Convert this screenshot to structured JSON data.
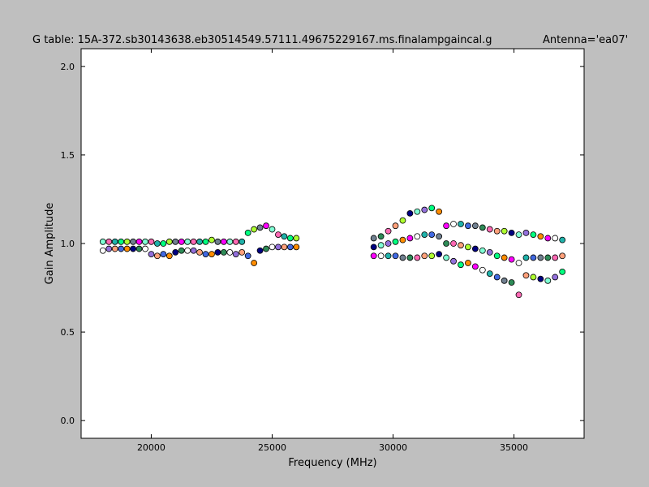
{
  "chart_data": {
    "type": "scatter",
    "title": "G table: 15A-372.sb30143638.eb30514549.57111.49675229167.ms.finalampgaincal.g",
    "annotation": "Antenna='ea07'",
    "x_label": "Frequency (MHz)",
    "y_label": "Gain Amplitude",
    "xlim": [
      17100,
      37900
    ],
    "ylim": [
      -0.1,
      2.1
    ],
    "xticks": [
      20000,
      25000,
      30000,
      35000
    ],
    "yticks": [
      {
        "value": 0,
        "label": "0.0"
      },
      {
        "value": 0.5,
        "label": "0.5"
      },
      {
        "value": 1,
        "label": "1.0"
      },
      {
        "value": 1.5,
        "label": "1.5"
      },
      {
        "value": 2,
        "label": "2.0"
      }
    ],
    "colors": [
      "#7fffd4",
      "#ffffff",
      "#ff69b4",
      "#9370db",
      "#20b2aa",
      "#ffa07a",
      "#00ff7f",
      "#4169e1",
      "#adff2f",
      "#ff8c00",
      "#708090",
      "#000080",
      "#ff00ff",
      "#2e8b57"
    ],
    "x": [
      18000,
      18000,
      18250,
      18250,
      18500,
      18500,
      18750,
      18750,
      19000,
      19000,
      19250,
      19250,
      19500,
      19500,
      19750,
      19750,
      20000,
      20000,
      20250,
      20250,
      20500,
      20500,
      20750,
      20750,
      21000,
      21000,
      21250,
      21250,
      21500,
      21500,
      21750,
      21750,
      22000,
      22000,
      22250,
      22250,
      22500,
      22500,
      22750,
      22750,
      23000,
      23000,
      23250,
      23250,
      23500,
      23500,
      23750,
      23750,
      24000,
      24000,
      24250,
      24250,
      24500,
      24500,
      24750,
      24750,
      25000,
      25000,
      25250,
      25250,
      25500,
      25500,
      25750,
      25750,
      26000,
      26000,
      29200,
      29200,
      29200,
      29500,
      29500,
      29500,
      29800,
      29800,
      29800,
      30100,
      30100,
      30100,
      30400,
      30400,
      30400,
      30700,
      30700,
      30700,
      31000,
      31000,
      31000,
      31300,
      31300,
      31300,
      31600,
      31600,
      31600,
      31900,
      31900,
      31900,
      32200,
      32200,
      32200,
      32500,
      32500,
      32500,
      32800,
      32800,
      32800,
      33100,
      33100,
      33100,
      33400,
      33400,
      33400,
      33700,
      33700,
      33700,
      34000,
      34000,
      34000,
      34300,
      34300,
      34300,
      34600,
      34600,
      34600,
      34900,
      34900,
      34900,
      35200,
      35200,
      35200,
      35500,
      35500,
      35500,
      35800,
      35800,
      35800,
      36100,
      36100,
      36100,
      36400,
      36400,
      36400,
      36700,
      36700,
      36700,
      37000,
      37000,
      37000
    ],
    "y": [
      1.01,
      0.96,
      1.01,
      0.97,
      1.01,
      0.97,
      1.01,
      0.97,
      1.01,
      0.97,
      1.01,
      0.97,
      1.01,
      0.97,
      1.01,
      0.97,
      1.01,
      0.94,
      1.0,
      0.93,
      1.0,
      0.94,
      1.01,
      0.93,
      1.01,
      0.95,
      1.01,
      0.96,
      1.01,
      0.96,
      1.01,
      0.96,
      1.01,
      0.95,
      1.01,
      0.94,
      1.02,
      0.94,
      1.01,
      0.95,
      1.01,
      0.95,
      1.01,
      0.95,
      1.01,
      0.94,
      1.01,
      0.95,
      1.06,
      0.93,
      1.08,
      0.89,
      1.09,
      0.96,
      1.1,
      0.97,
      1.08,
      0.98,
      1.05,
      0.98,
      1.04,
      0.98,
      1.03,
      0.98,
      1.03,
      0.98,
      1.03,
      0.98,
      0.93,
      1.04,
      0.99,
      0.93,
      1.07,
      1.0,
      0.93,
      1.1,
      1.01,
      0.93,
      1.13,
      1.02,
      0.92,
      1.17,
      1.03,
      0.92,
      1.18,
      1.04,
      0.92,
      1.19,
      1.05,
      0.93,
      1.2,
      1.05,
      0.93,
      1.18,
      1.04,
      0.94,
      1.1,
      1.0,
      0.92,
      1.11,
      1.0,
      0.9,
      1.11,
      0.99,
      0.88,
      1.1,
      0.98,
      0.89,
      1.1,
      0.97,
      0.87,
      1.09,
      0.96,
      0.85,
      1.08,
      0.95,
      0.83,
      1.07,
      0.93,
      0.81,
      1.07,
      0.92,
      0.79,
      1.06,
      0.91,
      0.78,
      1.05,
      0.89,
      0.71,
      1.06,
      0.92,
      0.82,
      1.05,
      0.92,
      0.81,
      1.04,
      0.92,
      0.8,
      1.03,
      0.92,
      0.79,
      1.03,
      0.92,
      0.81,
      1.02,
      0.93,
      0.84
    ]
  }
}
